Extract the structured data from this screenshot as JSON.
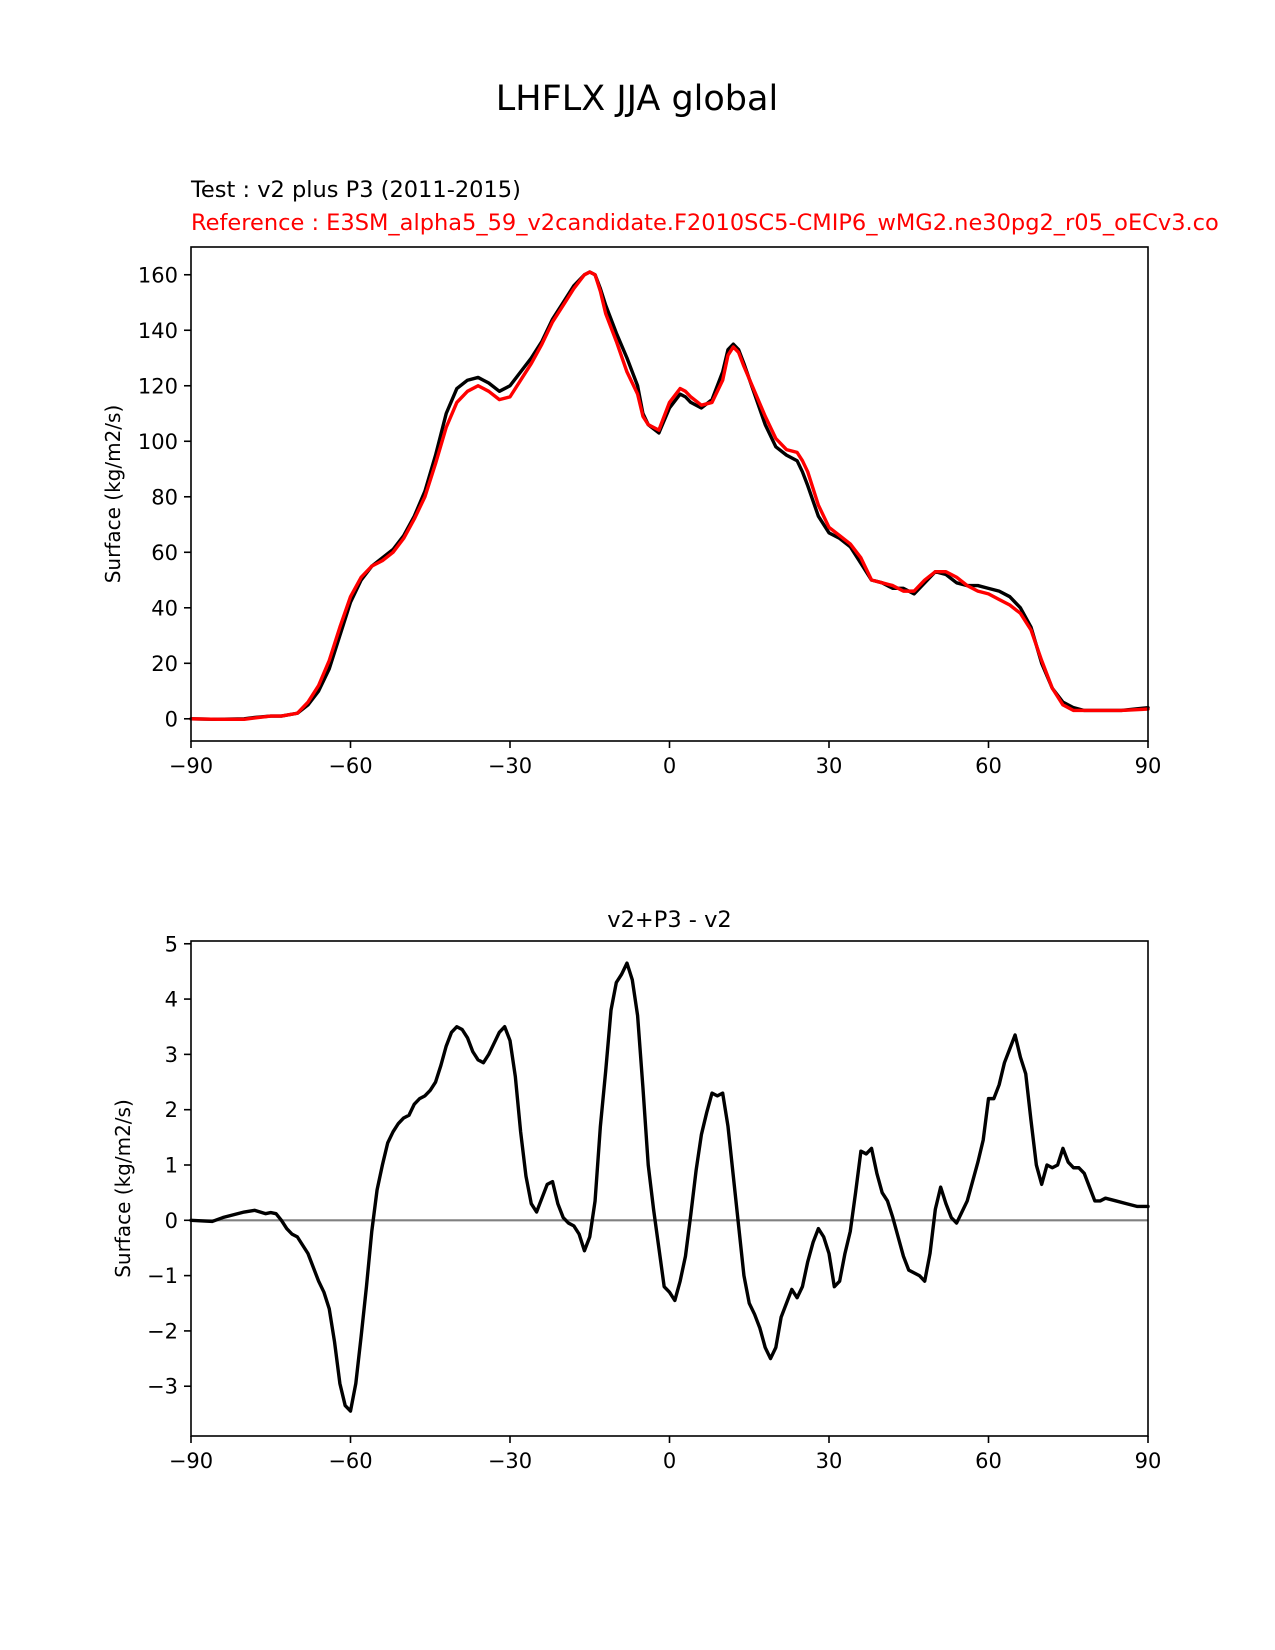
{
  "figure": {
    "suptitle": "LHFLX JJA global",
    "test_label": "Test : v2 plus P3 (2011-2015)",
    "reference_label": "Reference : E3SM_alpha5_59_v2candidate.F2010SC5-CMIP6_wMG2.ne30pg2_r05_oECv3.co",
    "colors": {
      "test": "#000000",
      "reference": "#ff0000",
      "zero_line": "#808080"
    }
  },
  "chart_data": [
    {
      "type": "line",
      "title": "",
      "xlabel": "",
      "ylabel": "Surface (kg/m2/s)",
      "xlim": [
        -90,
        90
      ],
      "ylim": [
        -8,
        170
      ],
      "xticks": [
        -90,
        -60,
        -30,
        0,
        30,
        60,
        90
      ],
      "xtick_labels": [
        "−90",
        "−60",
        "−30",
        "0",
        "30",
        "60",
        "90"
      ],
      "yticks": [
        0,
        20,
        40,
        60,
        80,
        100,
        120,
        140,
        160
      ],
      "ytick_labels": [
        "0",
        "20",
        "40",
        "60",
        "80",
        "100",
        "120",
        "140",
        "160"
      ],
      "grid": false,
      "series": [
        {
          "color": "#000000",
          "x": [
            -90,
            -85,
            -80,
            -78,
            -75,
            -73,
            -70,
            -68,
            -66,
            -64,
            -62,
            -60,
            -58,
            -56,
            -54,
            -52,
            -50,
            -48,
            -46,
            -44,
            -42,
            -40,
            -38,
            -36,
            -35,
            -34,
            -32,
            -30,
            -28,
            -26,
            -24,
            -22,
            -20,
            -18,
            -16,
            -15,
            -14,
            -13,
            -12,
            -10,
            -8,
            -6,
            -5,
            -4,
            -2,
            0,
            2,
            3,
            4,
            6,
            8,
            10,
            11,
            12,
            13,
            14,
            16,
            18,
            20,
            22,
            24,
            25,
            26,
            28,
            30,
            32,
            34,
            36,
            38,
            40,
            42,
            44,
            46,
            48,
            50,
            52,
            54,
            56,
            58,
            60,
            62,
            64,
            66,
            68,
            70,
            72,
            74,
            76,
            78,
            80,
            85,
            90
          ],
          "y": [
            0,
            -0.2,
            0,
            0.5,
            1,
            1,
            2,
            5,
            10,
            18,
            30,
            42,
            50,
            55,
            58,
            61,
            66,
            73,
            82,
            95,
            110,
            119,
            122,
            123,
            122,
            121,
            118,
            120,
            125,
            130,
            136,
            144,
            150,
            156,
            160,
            161,
            160,
            155,
            149,
            139,
            130,
            120,
            110,
            106,
            103,
            112,
            117,
            116,
            114,
            112,
            115,
            125,
            133,
            135,
            133,
            128,
            117,
            106,
            98,
            95,
            93,
            89,
            84,
            73,
            67,
            65,
            62,
            56,
            50,
            49,
            47,
            47,
            45,
            49,
            53,
            52,
            49,
            48,
            48,
            47,
            46,
            44,
            40,
            33,
            20,
            11,
            6,
            4,
            3,
            3,
            3,
            4
          ]
        },
        {
          "color": "#ff0000",
          "x": [
            -90,
            -85,
            -80,
            -78,
            -75,
            -73,
            -70,
            -68,
            -66,
            -64,
            -62,
            -60,
            -58,
            -56,
            -54,
            -52,
            -50,
            -48,
            -46,
            -44,
            -42,
            -40,
            -38,
            -36,
            -35,
            -34,
            -32,
            -30,
            -28,
            -26,
            -24,
            -22,
            -20,
            -18,
            -16,
            -15,
            -14,
            -13,
            -12,
            -10,
            -8,
            -6,
            -5,
            -4,
            -2,
            0,
            2,
            3,
            4,
            6,
            8,
            10,
            11,
            12,
            13,
            14,
            16,
            18,
            20,
            22,
            24,
            25,
            26,
            28,
            30,
            32,
            34,
            36,
            38,
            40,
            42,
            44,
            46,
            48,
            50,
            52,
            54,
            56,
            58,
            60,
            62,
            64,
            66,
            68,
            70,
            72,
            74,
            76,
            78,
            80,
            85,
            90
          ],
          "y": [
            0,
            -0.2,
            -0.2,
            0.3,
            1,
            1,
            2,
            6,
            12,
            21,
            33,
            44,
            51,
            55,
            57,
            60,
            65,
            72,
            80,
            92,
            105,
            114,
            118,
            120,
            119,
            118,
            115,
            116,
            122,
            128,
            135,
            143,
            149,
            155,
            160,
            161,
            160,
            154,
            146,
            136,
            125,
            117,
            109,
            106,
            104,
            114,
            119,
            118,
            116,
            113,
            114,
            122,
            131,
            134,
            132,
            127,
            118,
            109,
            101,
            97,
            96,
            93,
            89,
            77,
            69,
            66,
            63,
            58,
            50,
            49,
            48,
            46,
            46,
            50,
            53,
            53,
            51,
            48,
            46,
            45,
            43,
            41,
            38,
            32,
            21,
            11,
            5,
            3,
            3,
            3,
            3,
            3.5
          ]
        }
      ]
    },
    {
      "type": "line",
      "title": "v2+P3 - v2",
      "xlabel": "",
      "ylabel": "Surface (kg/m2/s)",
      "xlim": [
        -90,
        90
      ],
      "ylim": [
        -3.9,
        5.05
      ],
      "xticks": [
        -90,
        -60,
        -30,
        0,
        30,
        60,
        90
      ],
      "xtick_labels": [
        "−90",
        "−60",
        "−30",
        "0",
        "30",
        "60",
        "90"
      ],
      "yticks": [
        -3,
        -2,
        -1,
        0,
        1,
        2,
        3,
        4,
        5
      ],
      "ytick_labels": [
        "−3",
        "−2",
        "−1",
        "0",
        "1",
        "2",
        "3",
        "4",
        "5"
      ],
      "grid": false,
      "zero_line": true,
      "series": [
        {
          "color": "#000000",
          "x": [
            -90,
            -86,
            -84,
            -82,
            -80,
            -78,
            -76,
            -75,
            -74,
            -73,
            -72,
            -71,
            -70,
            -68,
            -66,
            -65,
            -64,
            -63,
            -62,
            -61,
            -60,
            -59,
            -58,
            -57,
            -56,
            -55,
            -54,
            -53,
            -52,
            -51,
            -50,
            -49,
            -48,
            -47,
            -46,
            -45,
            -44,
            -43,
            -42,
            -41,
            -40,
            -39,
            -38,
            -37,
            -36,
            -35,
            -34,
            -33,
            -32,
            -31,
            -30,
            -29,
            -28,
            -27,
            -26,
            -25,
            -24,
            -23,
            -22,
            -21,
            -20,
            -19,
            -18,
            -17,
            -16,
            -15,
            -14,
            -13,
            -12,
            -11,
            -10,
            -9,
            -8,
            -7,
            -6,
            -5,
            -4,
            -3,
            -2,
            -1,
            0,
            1,
            2,
            3,
            4,
            5,
            6,
            7,
            8,
            9,
            10,
            11,
            12,
            13,
            14,
            15,
            16,
            17,
            18,
            19,
            20,
            21,
            22,
            23,
            24,
            25,
            26,
            27,
            28,
            29,
            30,
            31,
            32,
            33,
            34,
            35,
            36,
            37,
            38,
            39,
            40,
            41,
            42,
            43,
            44,
            45,
            46,
            47,
            48,
            49,
            50,
            51,
            52,
            53,
            54,
            55,
            56,
            57,
            58,
            59,
            60,
            61,
            62,
            63,
            64,
            65,
            66,
            67,
            68,
            69,
            70,
            71,
            72,
            73,
            74,
            75,
            76,
            77,
            78,
            79,
            80,
            81,
            82,
            84,
            86,
            88,
            90
          ],
          "y": [
            0,
            -0.02,
            0.05,
            0.1,
            0.15,
            0.18,
            0.12,
            0.14,
            0.12,
            0,
            -0.15,
            -0.25,
            -0.3,
            -0.6,
            -1.1,
            -1.3,
            -1.6,
            -2.2,
            -2.95,
            -3.35,
            -3.45,
            -2.95,
            -2.1,
            -1.2,
            -0.2,
            0.55,
            1.0,
            1.4,
            1.6,
            1.75,
            1.85,
            1.9,
            2.1,
            2.2,
            2.25,
            2.35,
            2.5,
            2.8,
            3.15,
            3.4,
            3.5,
            3.45,
            3.3,
            3.05,
            2.9,
            2.85,
            3.0,
            3.2,
            3.4,
            3.5,
            3.25,
            2.6,
            1.6,
            0.8,
            0.3,
            0.15,
            0.4,
            0.65,
            0.7,
            0.3,
            0.05,
            -0.05,
            -0.1,
            -0.25,
            -0.55,
            -0.3,
            0.35,
            1.7,
            2.7,
            3.8,
            4.3,
            4.45,
            4.65,
            4.35,
            3.7,
            2.4,
            1.0,
            0.2,
            -0.5,
            -1.2,
            -1.3,
            -1.45,
            -1.1,
            -0.65,
            0.1,
            0.9,
            1.55,
            1.95,
            2.3,
            2.25,
            2.3,
            1.7,
            0.8,
            -0.1,
            -1.0,
            -1.5,
            -1.7,
            -1.95,
            -2.3,
            -2.5,
            -2.3,
            -1.75,
            -1.5,
            -1.25,
            -1.4,
            -1.2,
            -0.75,
            -0.4,
            -0.15,
            -0.3,
            -0.6,
            -1.2,
            -1.1,
            -0.6,
            -0.2,
            0.5,
            1.25,
            1.2,
            1.3,
            0.85,
            0.5,
            0.35,
            0.05,
            -0.3,
            -0.65,
            -0.9,
            -0.95,
            -1.0,
            -1.1,
            -0.6,
            0.2,
            0.6,
            0.3,
            0.05,
            -0.05,
            0.15,
            0.35,
            0.7,
            1.05,
            1.45,
            2.2,
            2.2,
            2.45,
            2.85,
            3.1,
            3.35,
            2.95,
            2.65,
            1.8,
            1.0,
            0.65,
            1.0,
            0.95,
            1.0,
            1.3,
            1.05,
            0.95,
            0.95,
            0.85,
            0.6,
            0.35,
            0.35,
            0.4,
            0.35,
            0.3,
            0.25,
            0.25
          ]
        }
      ]
    }
  ]
}
